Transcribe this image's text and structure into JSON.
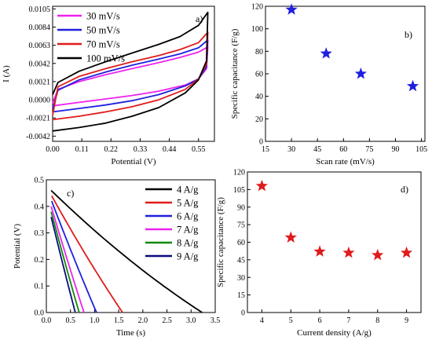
{
  "chart_data": [
    {
      "panel": "a)",
      "type": "line",
      "xlabel": "Potential (V)",
      "ylabel": "I (A)",
      "xlim": [
        0.0,
        0.61
      ],
      "ylim": [
        -0.0048,
        0.0108
      ],
      "xticks": [
        0.0,
        0.11,
        0.22,
        0.33,
        0.44,
        0.55
      ],
      "xtick_labels": [
        "0.00",
        "0.11",
        "0.22",
        "0.33",
        "0.44",
        "0.55"
      ],
      "yticks": [
        -0.0042,
        -0.0021,
        0.0,
        0.0021,
        0.0042,
        0.0063,
        0.0084,
        0.0105
      ],
      "ytick_labels": [
        "-0.0042",
        "-0.0021",
        "0.0000",
        "0.0021",
        "0.0042",
        "0.0063",
        "0.0084",
        "0.0105"
      ],
      "legend_position": "top-left",
      "series": [
        {
          "name": "30 mV/s",
          "color": "#ee22ee",
          "forward": [
            [
              0.0,
              -0.0004
            ],
            [
              0.02,
              0.0012
            ],
            [
              0.1,
              0.0021
            ],
            [
              0.2,
              0.0029
            ],
            [
              0.3,
              0.0036
            ],
            [
              0.4,
              0.0043
            ],
            [
              0.48,
              0.0049
            ],
            [
              0.55,
              0.0055
            ],
            [
              0.585,
              0.0061
            ]
          ],
          "reverse": [
            [
              0.585,
              0.0061
            ],
            [
              0.58,
              0.0036
            ],
            [
              0.55,
              0.0024
            ],
            [
              0.5,
              0.0017
            ],
            [
              0.4,
              0.001
            ],
            [
              0.3,
              0.0005
            ],
            [
              0.2,
              0.0001
            ],
            [
              0.1,
              -0.0003
            ],
            [
              0.0,
              -0.0007
            ]
          ]
        },
        {
          "name": "50 mV/s",
          "color": "#1f1fe0",
          "forward": [
            [
              0.0,
              -0.0011
            ],
            [
              0.02,
              0.0011
            ],
            [
              0.1,
              0.0023
            ],
            [
              0.2,
              0.0032
            ],
            [
              0.3,
              0.004
            ],
            [
              0.4,
              0.0047
            ],
            [
              0.48,
              0.0053
            ],
            [
              0.55,
              0.006
            ],
            [
              0.585,
              0.0069
            ]
          ],
          "reverse": [
            [
              0.585,
              0.0069
            ],
            [
              0.58,
              0.0038
            ],
            [
              0.55,
              0.0024
            ],
            [
              0.5,
              0.0016
            ],
            [
              0.4,
              0.0006
            ],
            [
              0.3,
              -0.0001
            ],
            [
              0.2,
              -0.0006
            ],
            [
              0.1,
              -0.001
            ],
            [
              0.0,
              -0.0014
            ]
          ]
        },
        {
          "name": "70 mV/s",
          "color": "#e01b1b",
          "forward": [
            [
              0.0,
              -0.0018
            ],
            [
              0.02,
              0.0015
            ],
            [
              0.1,
              0.0027
            ],
            [
              0.2,
              0.0036
            ],
            [
              0.3,
              0.0044
            ],
            [
              0.4,
              0.0051
            ],
            [
              0.48,
              0.0058
            ],
            [
              0.55,
              0.0066
            ],
            [
              0.585,
              0.0078
            ]
          ],
          "reverse": [
            [
              0.585,
              0.0078
            ],
            [
              0.58,
              0.0041
            ],
            [
              0.55,
              0.0024
            ],
            [
              0.5,
              0.0012
            ],
            [
              0.4,
              0.0
            ],
            [
              0.3,
              -0.0008
            ],
            [
              0.2,
              -0.0014
            ],
            [
              0.1,
              -0.0019
            ],
            [
              0.0,
              -0.0023
            ]
          ]
        },
        {
          "name": "100 mV/s",
          "color": "#000000",
          "forward": [
            [
              0.0,
              0.0006
            ],
            [
              0.02,
              0.002
            ],
            [
              0.1,
              0.0033
            ],
            [
              0.2,
              0.0044
            ],
            [
              0.3,
              0.0054
            ],
            [
              0.4,
              0.0064
            ],
            [
              0.48,
              0.0073
            ],
            [
              0.55,
              0.0086
            ],
            [
              0.585,
              0.0101
            ]
          ],
          "reverse": [
            [
              0.585,
              0.0101
            ],
            [
              0.58,
              0.0045
            ],
            [
              0.55,
              0.0023
            ],
            [
              0.5,
              0.0008
            ],
            [
              0.4,
              -0.0009
            ],
            [
              0.3,
              -0.0019
            ],
            [
              0.2,
              -0.0027
            ],
            [
              0.1,
              -0.0032
            ],
            [
              0.0,
              -0.0036
            ]
          ]
        }
      ]
    },
    {
      "panel": "b)",
      "type": "scatter",
      "marker": "star",
      "color": "#1f1fe0",
      "xlabel": "Scan rate (mV/s)",
      "ylabel": "Specific capacitance (F/g)",
      "xlim": [
        15,
        107
      ],
      "ylim": [
        0,
        120
      ],
      "xticks": [
        15,
        30,
        45,
        60,
        75,
        90,
        105
      ],
      "xtick_labels": [
        "15",
        "30",
        "45",
        "60",
        "75",
        "90",
        "105"
      ],
      "yticks": [
        0,
        20,
        40,
        60,
        80,
        100,
        120
      ],
      "ytick_labels": [
        "0",
        "20",
        "40",
        "60",
        "80",
        "100",
        "120"
      ],
      "x": [
        30,
        50,
        70,
        100
      ],
      "y": [
        117,
        78,
        60,
        49
      ]
    },
    {
      "panel": "c)",
      "type": "line",
      "xlabel": "Time (s)",
      "ylabel": "Potential (V)",
      "xlim": [
        0.0,
        3.5
      ],
      "ylim": [
        0.0,
        0.5
      ],
      "xticks": [
        0.0,
        0.5,
        1.0,
        1.5,
        2.0,
        2.5,
        3.0,
        3.5
      ],
      "xtick_labels": [
        "0.0",
        "0.5",
        "1.0",
        "1.5",
        "2.0",
        "2.5",
        "3.0",
        "3.5"
      ],
      "yticks": [
        0.0,
        0.1,
        0.2,
        0.3,
        0.4,
        0.5
      ],
      "ytick_labels": [
        "0.0",
        "0.1",
        "0.2",
        "0.3",
        "0.4",
        "0.5"
      ],
      "legend_position": "top-right",
      "series": [
        {
          "name": "4 A/g",
          "color": "#000000",
          "x0": 0.1,
          "v0": 0.46,
          "t_end": 3.23,
          "curve": 0.2
        },
        {
          "name": "5 A/g",
          "color": "#e01b1b",
          "x0": 0.11,
          "v0": 0.44,
          "t_end": 1.58,
          "curve": 0.1
        },
        {
          "name": "6 A/g",
          "color": "#1f1fe0",
          "x0": 0.11,
          "v0": 0.42,
          "t_end": 1.04,
          "curve": 0.06
        },
        {
          "name": "7 A/g",
          "color": "#ee22ee",
          "x0": 0.1,
          "v0": 0.4,
          "t_end": 0.78,
          "curve": 0.05
        },
        {
          "name": "8 A/g",
          "color": "#0b8a0b",
          "x0": 0.1,
          "v0": 0.38,
          "t_end": 0.68,
          "curve": 0.04
        },
        {
          "name": "9 A/g",
          "color": "#0b0b7a",
          "x0": 0.1,
          "v0": 0.36,
          "t_end": 0.6,
          "curve": 0.04
        }
      ]
    },
    {
      "panel": "d)",
      "type": "scatter",
      "marker": "star",
      "color": "#e01b1b",
      "xlabel": "Current density (A/g)",
      "ylabel": "Specific capacitance (F/g)",
      "xlim": [
        3.5,
        9.5
      ],
      "ylim": [
        0,
        120
      ],
      "xticks": [
        4,
        5,
        6,
        7,
        8,
        9
      ],
      "xtick_labels": [
        "4",
        "5",
        "6",
        "7",
        "8",
        "9"
      ],
      "yticks": [
        0,
        15,
        30,
        45,
        60,
        75,
        90,
        105,
        120
      ],
      "ytick_labels": [
        "0",
        "15",
        "30",
        "45",
        "60",
        "75",
        "90",
        "105",
        "120"
      ],
      "x": [
        4,
        5,
        6,
        7,
        8,
        9
      ],
      "y": [
        108,
        64,
        52,
        51,
        49,
        51
      ]
    }
  ]
}
